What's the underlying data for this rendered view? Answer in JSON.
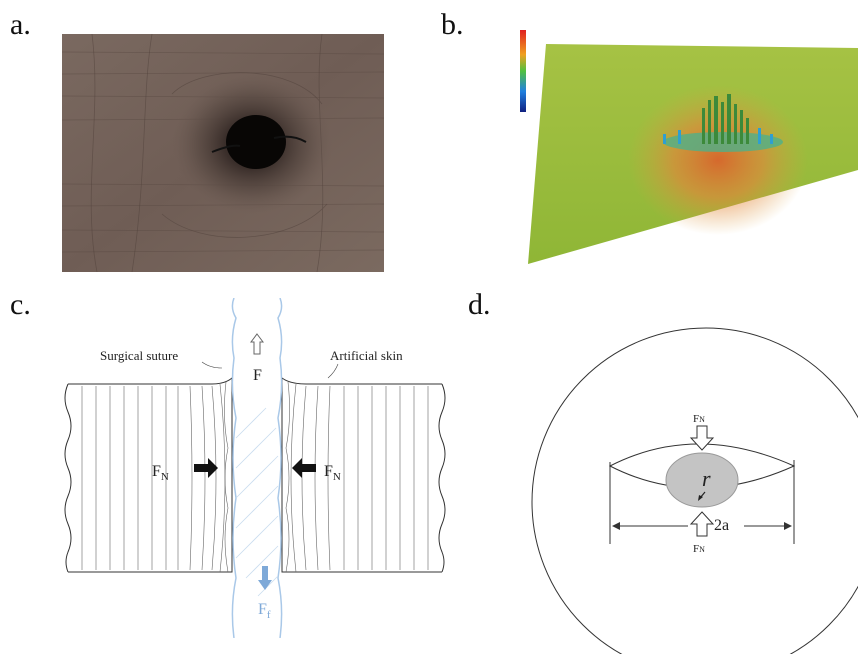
{
  "panels": {
    "a": {
      "letter": "a."
    },
    "b": {
      "letter": "b."
    },
    "c": {
      "letter": "c.",
      "suture_label": "Surgical suture",
      "skin_label": "Artificial skin",
      "force_main": "F",
      "normal_force": "F",
      "normal_sub": "N",
      "friction_force": "F",
      "friction_sub": "f"
    },
    "d": {
      "letter": "d.",
      "normal_force": "F",
      "normal_sub": "N",
      "radius": "r",
      "width": "2a"
    }
  },
  "colors": {
    "suture_blue": "#a9c8e8",
    "friction_arrow": "#7ea9d8",
    "surface_green": "#96bb3c",
    "surface_red": "#e05a2a"
  }
}
